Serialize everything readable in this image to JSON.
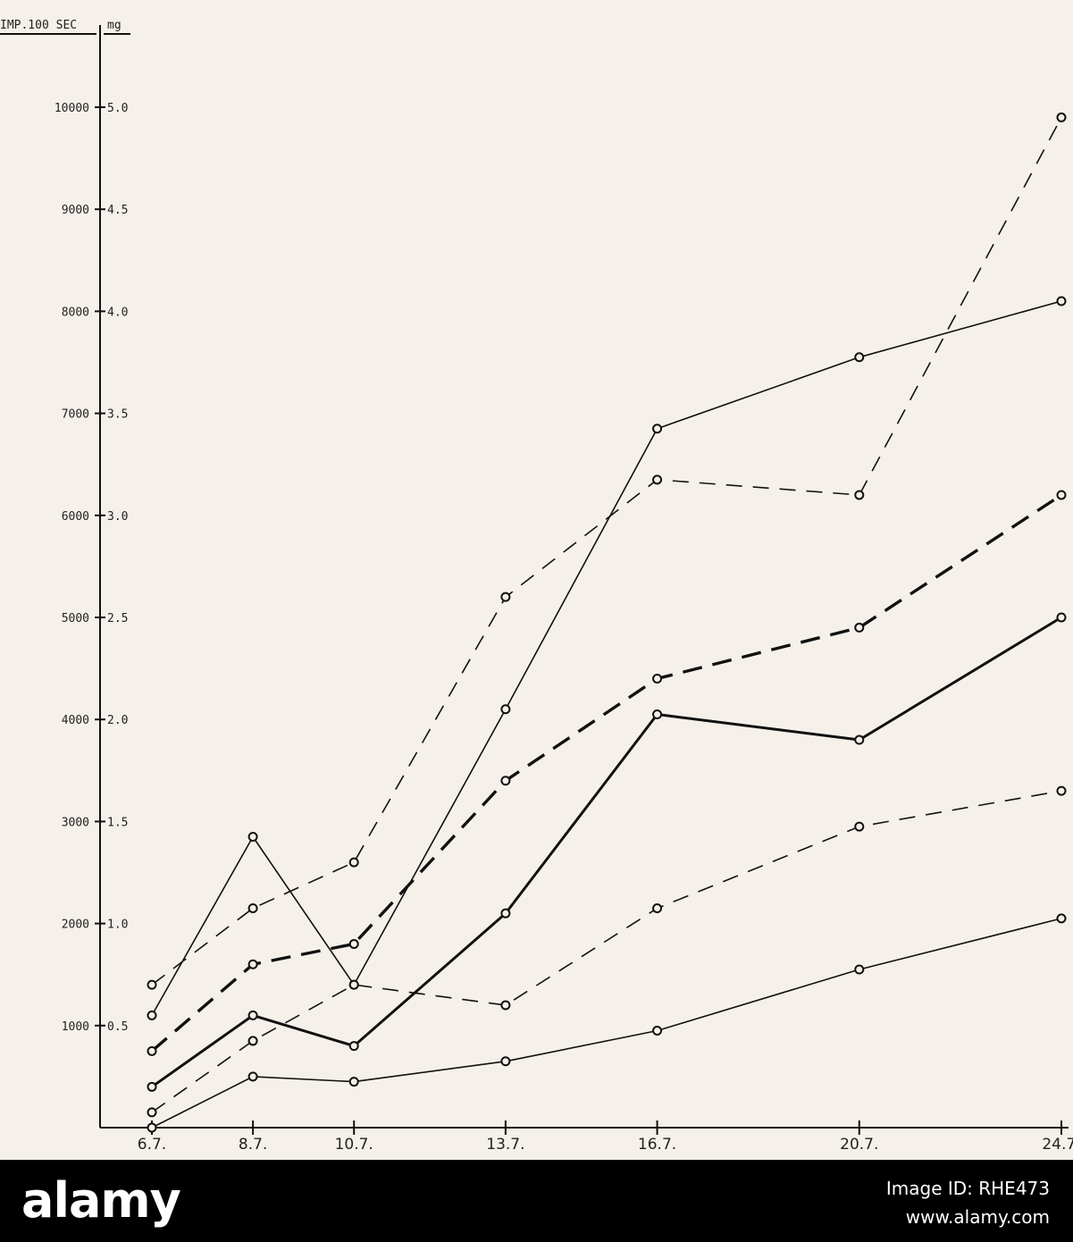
{
  "chart_data": {
    "type": "line",
    "left_axis_title": "IMP.100 SEC",
    "right_axis_title": "mg",
    "left_ticks": [
      "1000",
      "2000",
      "3000",
      "4000",
      "5000",
      "6000",
      "7000",
      "8000",
      "9000",
      "10000"
    ],
    "right_ticks": [
      "0.5",
      "1.0",
      "1.5",
      "2.0",
      "2.5",
      "3.0",
      "3.5",
      "4.0",
      "4.5",
      "5.0"
    ],
    "categories": [
      "6.7.",
      "8.7.",
      "10.7.",
      "13.7.",
      "16.7.",
      "20.7.",
      "24.7."
    ],
    "x_day": [
      6,
      8,
      10,
      13,
      16,
      20,
      24
    ],
    "ylim": [
      0,
      10000
    ],
    "grid": false,
    "series": [
      {
        "style": "thin-dashed",
        "values": [
          1400,
          2150,
          2600,
          5200,
          6350,
          6200,
          9900
        ]
      },
      {
        "style": "thin-solid",
        "values": [
          1100,
          2850,
          1400,
          4100,
          6850,
          7550,
          8100
        ]
      },
      {
        "style": "thick-dashed",
        "values": [
          750,
          1600,
          1800,
          3400,
          4400,
          4900,
          6200
        ]
      },
      {
        "style": "thick-solid",
        "values": [
          400,
          1100,
          800,
          2100,
          4050,
          3800,
          5000
        ]
      },
      {
        "style": "thin-dashed",
        "values": [
          150,
          850,
          1400,
          1200,
          2150,
          2950,
          3300
        ]
      },
      {
        "style": "thin-solid",
        "values": [
          0,
          500,
          450,
          650,
          950,
          1550,
          2050
        ]
      }
    ]
  },
  "watermark": {
    "logo": "alamy",
    "image_id": "Image ID: RHE473",
    "url": "www.alamy.com"
  }
}
